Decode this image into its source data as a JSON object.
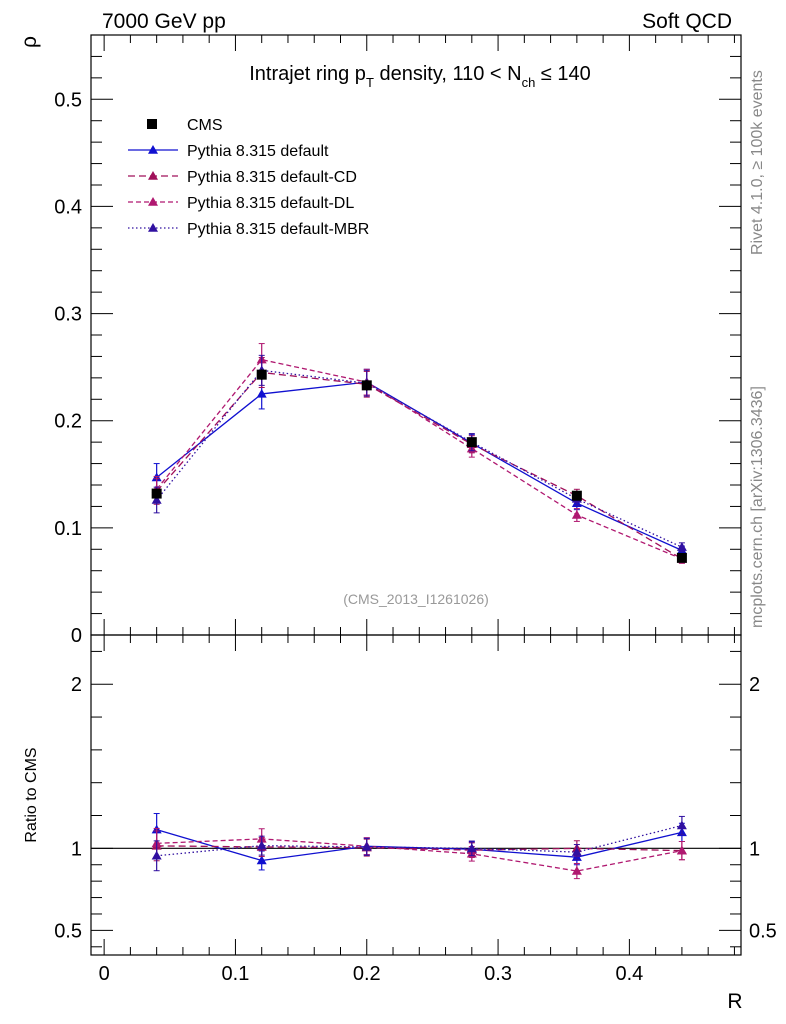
{
  "header": {
    "left": "7000 GeV pp",
    "right": "Soft QCD"
  },
  "side_labels": {
    "rivet": "Rivet 4.1.0, ≥ 100k events",
    "mcplots": "mcplots.cern.ch [arXiv:1306.3436]"
  },
  "chart_data": {
    "type": "line",
    "title": {
      "prefix": "Intrajet ring p",
      "sub1": "T",
      "middle": " density, 110 < N",
      "sub2": "ch",
      "suffix": " ≤ 140"
    },
    "watermark": "(CMS_2013_I1261026)",
    "xlabel": "R",
    "ylabel": "ρ",
    "ratio_ylabel": "Ratio to CMS",
    "xlim": [
      -0.01,
      0.485
    ],
    "ylim": [
      0,
      0.56
    ],
    "ratio_ylim": [
      0.35,
      2.3
    ],
    "x_ticks": [
      {
        "v": 0,
        "label": "0"
      },
      {
        "v": 0.1,
        "label": "0.1"
      },
      {
        "v": 0.2,
        "label": "0.2"
      },
      {
        "v": 0.3,
        "label": "0.3"
      },
      {
        "v": 0.4,
        "label": "0.4"
      }
    ],
    "y_ticks": [
      {
        "v": 0,
        "label": "0"
      },
      {
        "v": 0.1,
        "label": "0.1"
      },
      {
        "v": 0.2,
        "label": "0.2"
      },
      {
        "v": 0.3,
        "label": "0.3"
      },
      {
        "v": 0.4,
        "label": "0.4"
      },
      {
        "v": 0.5,
        "label": "0.5"
      }
    ],
    "ratio_ticks": [
      {
        "v": 0.5,
        "label": "0.5"
      },
      {
        "v": 1,
        "label": "1"
      },
      {
        "v": 2,
        "label": "2"
      }
    ],
    "x": [
      0.04,
      0.12,
      0.2,
      0.28,
      0.36,
      0.44
    ],
    "data": {
      "name": "CMS",
      "values": [
        0.132,
        0.243,
        0.233,
        0.18,
        0.13,
        0.072
      ],
      "errors": [
        0.004,
        0.005,
        0.005,
        0.004,
        0.004,
        0.003
      ]
    },
    "series": [
      {
        "name": "Pythia 8.315 default",
        "color": "#1010d0",
        "dash": "",
        "values": [
          0.147,
          0.225,
          0.236,
          0.179,
          0.123,
          0.079
        ],
        "errors": [
          0.013,
          0.014,
          0.012,
          0.008,
          0.006,
          0.004
        ]
      },
      {
        "name": "Pythia 8.315 default-CD",
        "color": "#a0105a",
        "dash": "7,4",
        "values": [
          0.134,
          0.245,
          0.234,
          0.178,
          0.13,
          0.071
        ],
        "errors": [
          0.012,
          0.014,
          0.012,
          0.008,
          0.006,
          0.004
        ]
      },
      {
        "name": "Pythia 8.315 default-DL",
        "color": "#b01870",
        "dash": "5,3",
        "values": [
          0.136,
          0.257,
          0.236,
          0.174,
          0.112,
          0.071
        ],
        "errors": [
          0.012,
          0.015,
          0.012,
          0.008,
          0.006,
          0.004
        ]
      },
      {
        "name": "Pythia 8.315 default-MBR",
        "color": "#3010a0",
        "dash": "1.5,2.5",
        "values": [
          0.126,
          0.247,
          0.235,
          0.18,
          0.127,
          0.082
        ],
        "errors": [
          0.012,
          0.014,
          0.012,
          0.008,
          0.006,
          0.004
        ]
      }
    ]
  }
}
